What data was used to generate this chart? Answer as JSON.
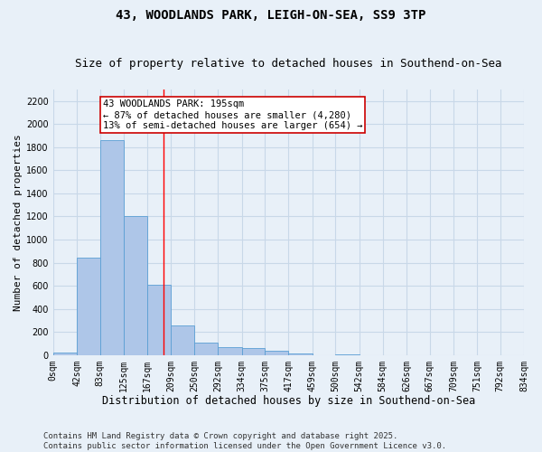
{
  "title1": "43, WOODLANDS PARK, LEIGH-ON-SEA, SS9 3TP",
  "title2": "Size of property relative to detached houses in Southend-on-Sea",
  "xlabel": "Distribution of detached houses by size in Southend-on-Sea",
  "ylabel": "Number of detached properties",
  "bin_labels": [
    "0sqm",
    "42sqm",
    "83sqm",
    "125sqm",
    "167sqm",
    "209sqm",
    "250sqm",
    "292sqm",
    "334sqm",
    "375sqm",
    "417sqm",
    "459sqm",
    "500sqm",
    "542sqm",
    "584sqm",
    "626sqm",
    "667sqm",
    "709sqm",
    "751sqm",
    "792sqm",
    "834sqm"
  ],
  "bin_edges": [
    0,
    42,
    83,
    125,
    167,
    209,
    250,
    292,
    334,
    375,
    417,
    459,
    500,
    542,
    584,
    626,
    667,
    709,
    751,
    792,
    834
  ],
  "bar_values": [
    20,
    840,
    1860,
    1200,
    610,
    260,
    110,
    70,
    60,
    35,
    10,
    0,
    5,
    0,
    0,
    0,
    0,
    0,
    0,
    0
  ],
  "bar_color": "#aec6e8",
  "bar_edge_color": "#5a9fd4",
  "grid_color": "#c8d8e8",
  "bg_color": "#e8f0f8",
  "red_line_x": 195,
  "annotation_text": "43 WOODLANDS PARK: 195sqm\n← 87% of detached houses are smaller (4,280)\n13% of semi-detached houses are larger (654) →",
  "annotation_box_color": "#ffffff",
  "annotation_box_edge": "#cc0000",
  "ylim": [
    0,
    2300
  ],
  "yticks": [
    0,
    200,
    400,
    600,
    800,
    1000,
    1200,
    1400,
    1600,
    1800,
    2000,
    2200
  ],
  "footnote": "Contains HM Land Registry data © Crown copyright and database right 2025.\nContains public sector information licensed under the Open Government Licence v3.0.",
  "title1_fontsize": 10,
  "title2_fontsize": 9,
  "xlabel_fontsize": 8.5,
  "ylabel_fontsize": 8,
  "tick_fontsize": 7,
  "annot_fontsize": 7.5,
  "footnote_fontsize": 6.5
}
